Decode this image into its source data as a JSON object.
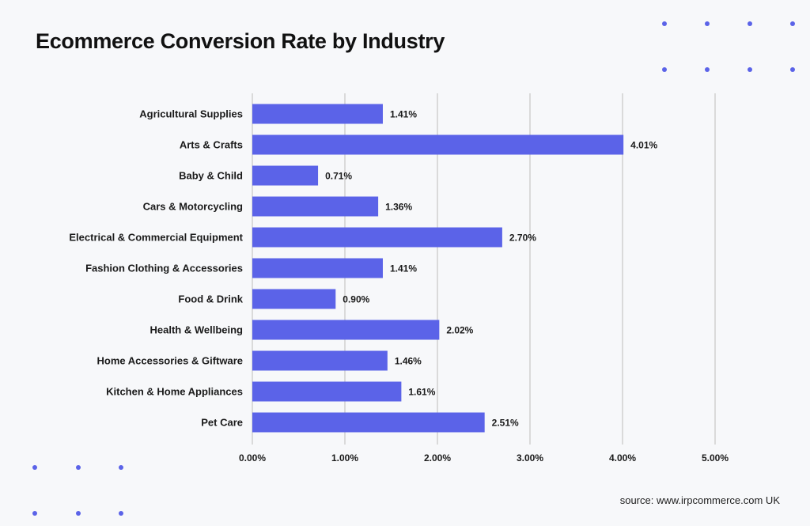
{
  "header": {
    "title": "Ecommerce Conversion Rate by Industry"
  },
  "footer": {
    "source": "source: www.irpcommerce.com UK"
  },
  "colors": {
    "bar": "#5b63e8",
    "dots": "#5b63e8",
    "grid": "#d0d0d0",
    "background": "#f7f8fa"
  },
  "chart_data": {
    "type": "bar",
    "orientation": "horizontal",
    "title": "Ecommerce Conversion Rate by Industry",
    "xlabel": "",
    "ylabel": "",
    "categories": [
      "Agricultural Supplies",
      "Arts & Crafts",
      "Baby & Child",
      "Cars & Motorcycling",
      "Electrical & Commercial Equipment",
      "Fashion Clothing & Accessories",
      "Food & Drink",
      "Health & Wellbeing",
      "Home Accessories & Giftware",
      "Kitchen & Home Appliances",
      "Pet Care"
    ],
    "values": [
      1.41,
      4.01,
      0.71,
      1.36,
      2.7,
      1.41,
      0.9,
      2.02,
      1.46,
      1.61,
      2.51
    ],
    "value_labels": [
      "1.41%",
      "4.01%",
      "0.71%",
      "1.36%",
      "2.70%",
      "1.41%",
      "0.90%",
      "2.02%",
      "1.46%",
      "1.61%",
      "2.51%"
    ],
    "xlim": [
      0,
      5
    ],
    "x_ticks": [
      0,
      1,
      2,
      3,
      4,
      5
    ],
    "x_tick_labels": [
      "0.00%",
      "1.00%",
      "2.00%",
      "3.00%",
      "4.00%",
      "5.00%"
    ],
    "grid": true,
    "legend": "none"
  }
}
